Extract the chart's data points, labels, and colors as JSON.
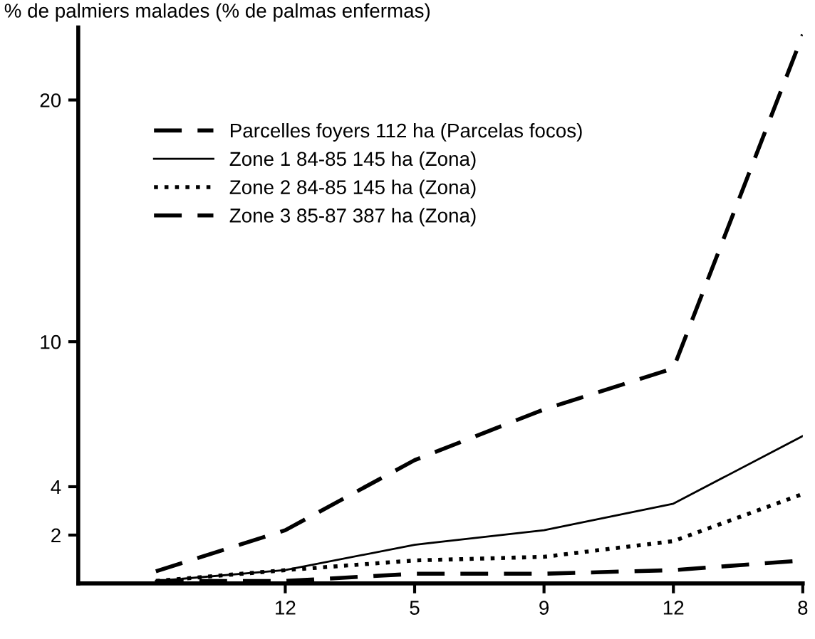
{
  "chart_data": {
    "type": "line",
    "ylabel": "% de palmiers malades (% de palmas enfermas)",
    "categories": [
      null,
      "12",
      "5",
      "9",
      "12",
      "8"
    ],
    "series": [
      {
        "name": "Parcelles foyers 112 ha (Parcelas focos)",
        "color": "#000000",
        "line_style": "dashed",
        "values": [
          0.5,
          2.2,
          5.1,
          7.2,
          8.9,
          22.7
        ]
      },
      {
        "name": "Zone 1 84-85 145 ha (Zona)",
        "color": "#000000",
        "line_style": "solid",
        "values": [
          0.1,
          0.55,
          1.6,
          2.2,
          3.3,
          6.1
        ]
      },
      {
        "name": "Zone 2 84-85 145 ha (Zona)",
        "color": "#000000",
        "line_style": "dotted",
        "values": [
          0.1,
          0.55,
          0.95,
          1.1,
          1.75,
          3.7
        ]
      },
      {
        "name": "Zone 3 85-87 387 ha (Zona)",
        "color": "#000000",
        "line_style": "dashed",
        "values": [
          0.1,
          0.1,
          0.4,
          0.4,
          0.55,
          0.95
        ]
      }
    ],
    "ylim": [
      0,
      23
    ],
    "yticks": [
      2,
      4,
      10,
      20
    ],
    "legend": "top left",
    "marker": "none"
  }
}
